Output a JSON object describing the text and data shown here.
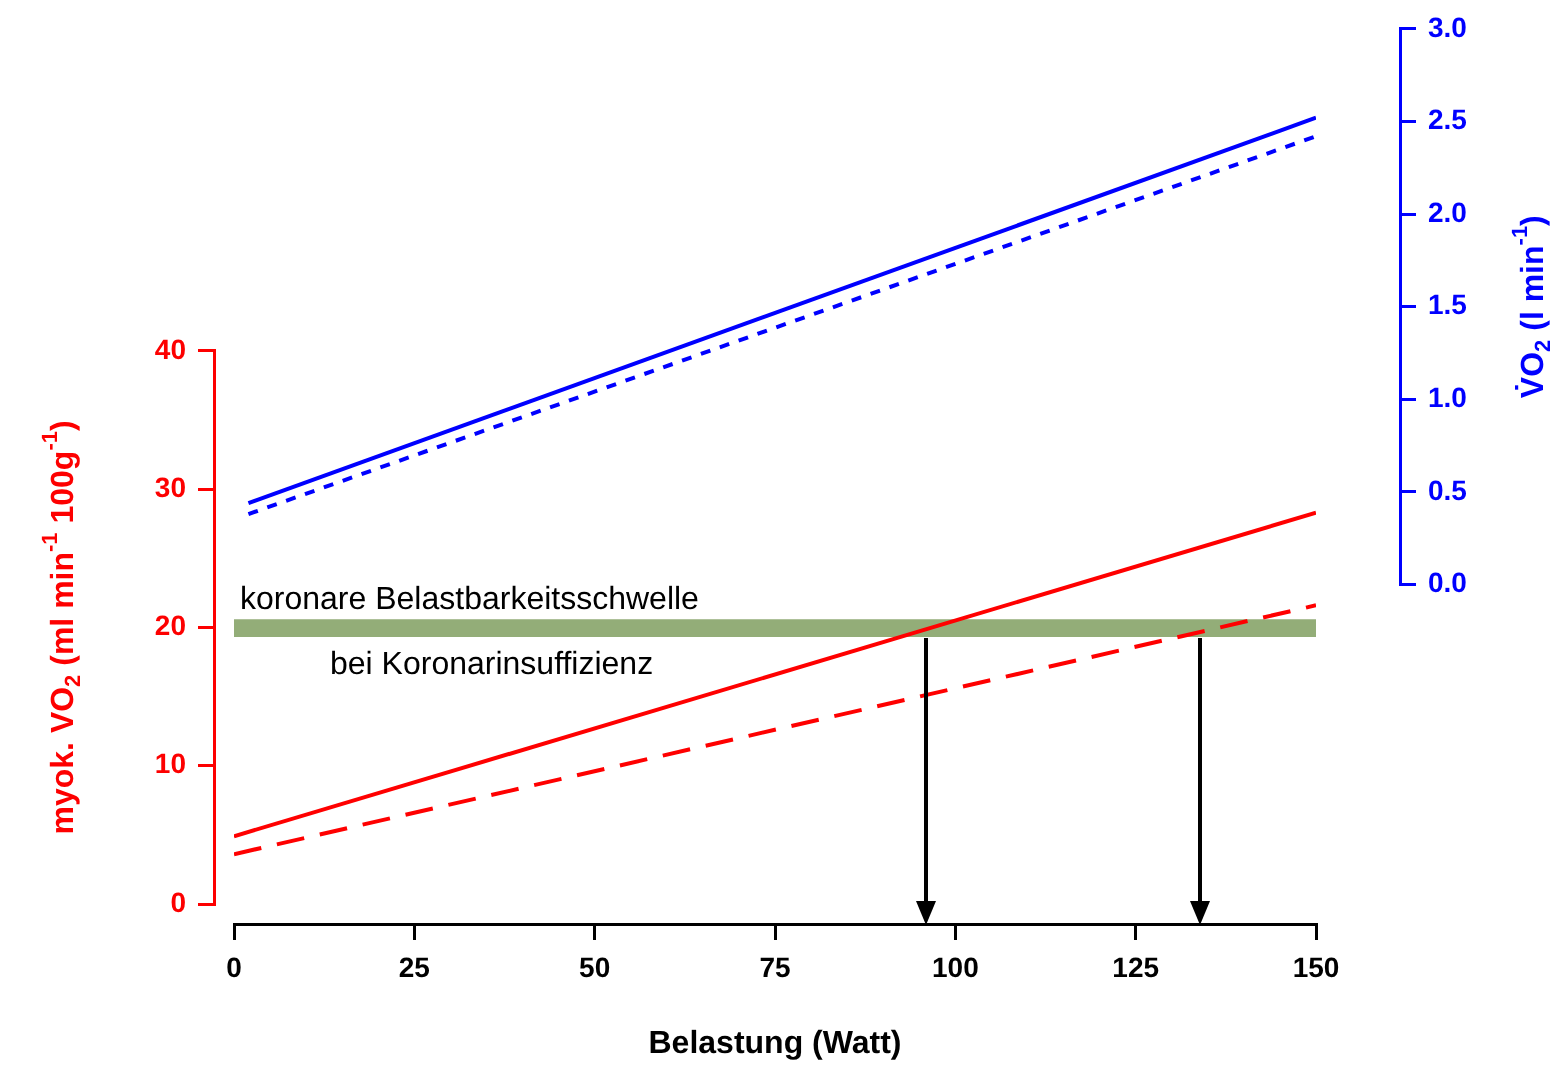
{
  "chart_data": {
    "type": "line",
    "xlabel": "Belastung (Watt)",
    "ylabel": "myok. VO$_{2}$ (ml min$^{-1}$ 100g$^{-1}$)",
    "y2label": "V̇O$_{2}$ (l min$^{-1}$)",
    "xlim": [
      0,
      150
    ],
    "xticks": [
      0,
      25,
      50,
      75,
      100,
      125,
      150
    ],
    "ylim": [
      0,
      40
    ],
    "yticks": [
      0,
      10,
      20,
      30,
      40
    ],
    "y2lim": [
      0,
      3
    ],
    "y2ticks": [
      {
        "value": 0,
        "label": "0.0"
      },
      {
        "value": 0.5,
        "label": "0.5"
      },
      {
        "value": 1,
        "label": "1.0"
      },
      {
        "value": 1.5,
        "label": "1.5"
      },
      {
        "value": 2,
        "label": "2.0"
      },
      {
        "value": 2.5,
        "label": "2.5"
      },
      {
        "value": 3,
        "label": "3.0"
      }
    ],
    "series": [
      {
        "color": "#ff0000",
        "x": [
          0,
          150
        ],
        "values": [
          4.9,
          28.3
        ],
        "line_style": "solid"
      },
      {
        "color": "#ff0000",
        "x": [
          0,
          150
        ],
        "values": [
          3.6,
          21.6
        ],
        "line_style": "dashed"
      },
      {
        "color": "#0000ff",
        "x": [
          2,
          150
        ],
        "values": [
          0.44,
          2.52
        ],
        "line_style": "solid",
        "axis": "y2"
      },
      {
        "color": "#0000ff",
        "x": [
          2,
          150
        ],
        "values": [
          0.38,
          2.42
        ],
        "line_style": "dotted",
        "axis": "y2"
      }
    ],
    "bands": [
      {
        "axis": "y",
        "from": 19.3,
        "to": 20.6,
        "color": "#93ad78",
        "label": "koronare Belastbarkeitsschwelle bei Koronarinsuffizienz"
      }
    ],
    "ref_lines": [
      {
        "axis": "x",
        "value": 96,
        "color": "#000000"
      },
      {
        "axis": "x",
        "value": 134,
        "color": "#000000"
      }
    ],
    "grid": false,
    "legend": false,
    "marker": "none"
  }
}
